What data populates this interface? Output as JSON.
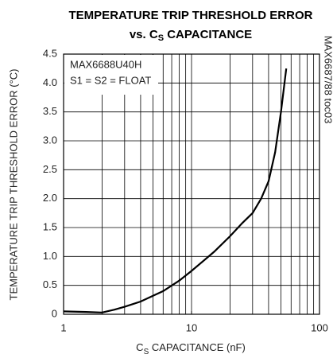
{
  "chart_data": {
    "type": "line",
    "title": [
      "TEMPERATURE TRIP THRESHOLD ERROR",
      [
        "vs. C",
        "S",
        " CAPACITANCE"
      ]
    ],
    "x_label": [
      "C",
      "S",
      " CAPACITANCE (nF)"
    ],
    "y_label": "TEMPERATURE TRIP THRESHOLD ERROR (°C)",
    "annotations": [
      "MAX6688U40H",
      "S1 = S2 = FLOAT"
    ],
    "side_note": "MAX6687/88 toc03",
    "x_log": true,
    "xlim": [
      1,
      100
    ],
    "xticks": [
      1,
      10,
      100
    ],
    "xgrid": [
      2,
      3,
      4,
      5,
      6,
      7,
      8,
      9,
      10,
      20,
      30,
      40,
      50,
      60,
      70,
      80,
      90
    ],
    "ylim": [
      0,
      4.5
    ],
    "yticks": [
      0,
      0.5,
      {
        "value": 1,
        "label": "1.0"
      },
      1.5,
      {
        "value": 2,
        "label": "2.0"
      },
      2.5,
      {
        "value": 3,
        "label": "3.0"
      },
      3.5,
      {
        "value": 4,
        "label": "4.0"
      },
      4.5
    ],
    "grid": true,
    "series": [
      {
        "color": "#000000",
        "x": [
          1,
          1.5,
          2,
          2.5,
          3,
          4,
          5,
          6,
          8,
          10,
          15,
          20,
          25,
          30,
          35,
          40,
          45,
          50,
          55
        ],
        "values": [
          0.05,
          0.04,
          0.03,
          0.08,
          0.13,
          0.22,
          0.32,
          0.4,
          0.58,
          0.75,
          1.08,
          1.35,
          1.58,
          1.75,
          2.0,
          2.3,
          2.8,
          3.5,
          4.25
        ]
      }
    ]
  }
}
